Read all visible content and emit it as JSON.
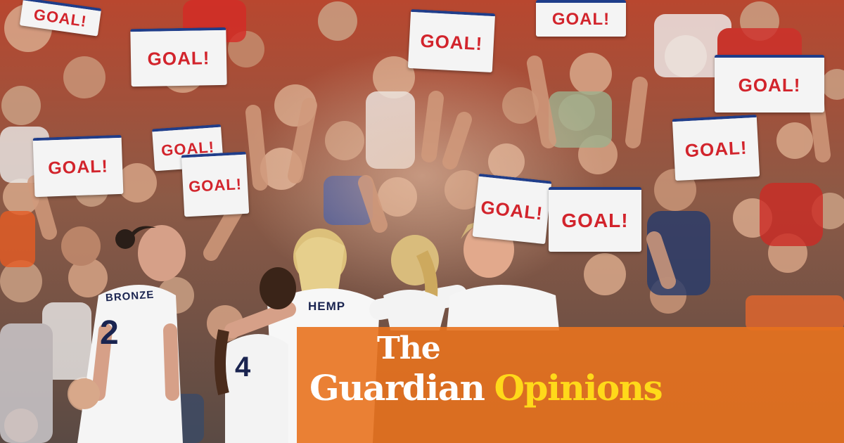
{
  "image": {
    "subject": "photo",
    "signs": [
      "GOAL!",
      "GOAL!",
      "GOAL!",
      "GOAL!",
      "GOAL!",
      "GOAL!",
      "GOAL!",
      "GOAL!",
      "GOAL!",
      "GOAL!",
      "GOAL!"
    ],
    "players": [
      {
        "name": "BRONZE",
        "number": "2"
      },
      {
        "name": "HEMP",
        "number": ""
      },
      {
        "name": "",
        "number": "4"
      }
    ]
  },
  "overlay": {
    "brand_line1": "The",
    "brand_word": "Guardian",
    "section_word": "Opinions",
    "colors": {
      "overlay": "#e8721e",
      "brand": "#ffffff",
      "section": "#ffd91a"
    }
  }
}
